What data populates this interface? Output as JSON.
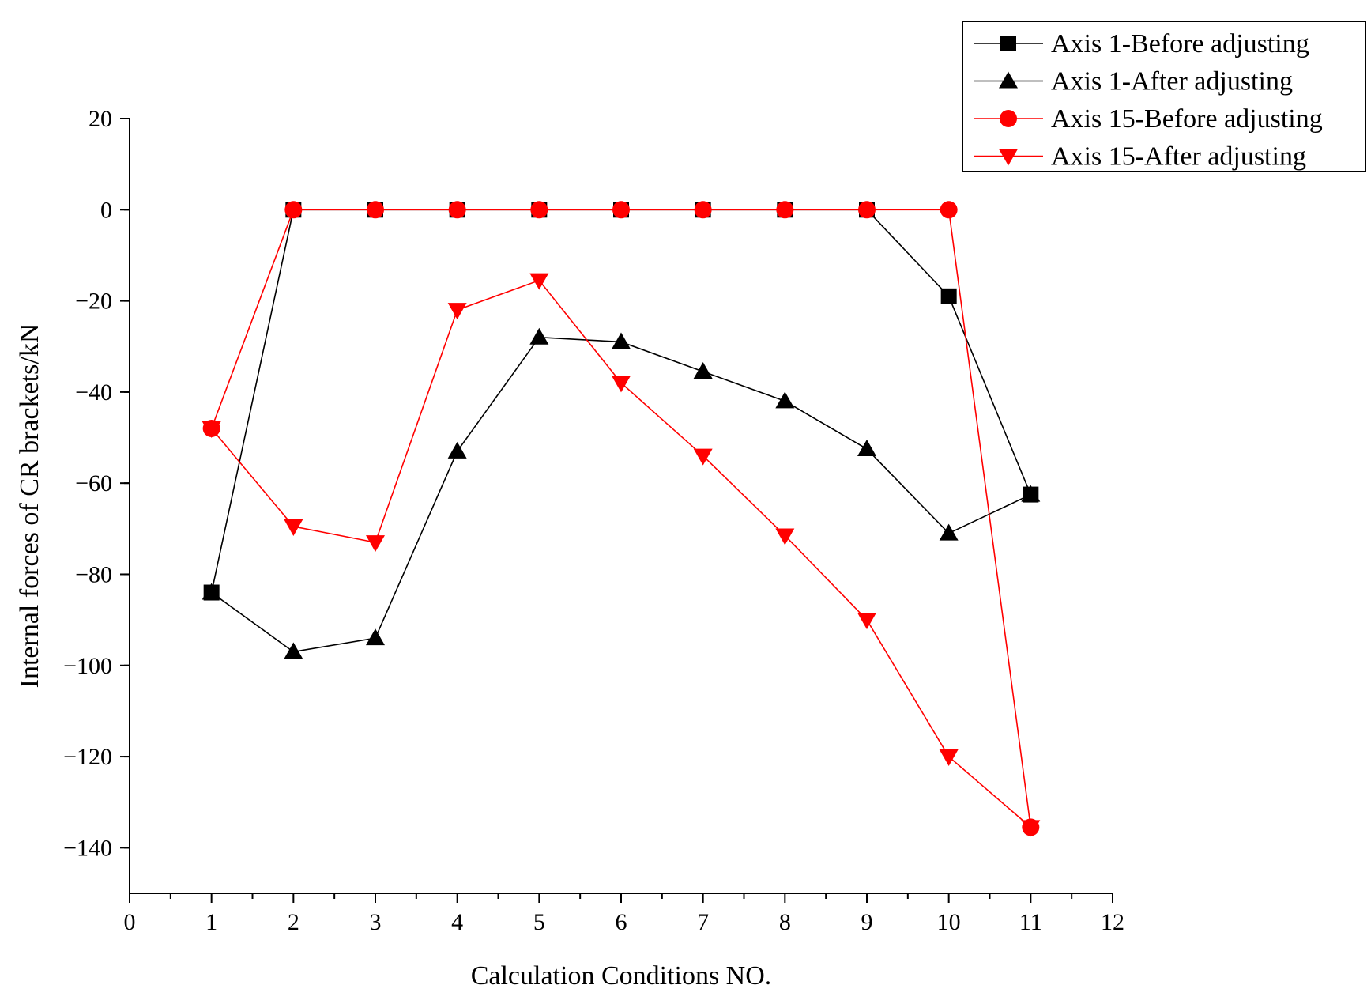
{
  "chart_data": {
    "type": "line",
    "title": "",
    "xlabel": "Calculation Conditions NO.",
    "ylabel": "Internal forces of CR brackets/kN",
    "xlim": [
      0,
      12
    ],
    "ylim": [
      -150,
      20
    ],
    "x_ticks": [
      0,
      1,
      2,
      3,
      4,
      5,
      6,
      7,
      8,
      9,
      10,
      11,
      12
    ],
    "x_tick_labels": [
      "0",
      "1",
      "2",
      "3",
      "4",
      "5",
      "6",
      "7",
      "8",
      "9",
      "10",
      "11",
      "12"
    ],
    "y_ticks": [
      20,
      0,
      -20,
      -40,
      -60,
      -80,
      -100,
      -120,
      -140
    ],
    "y_tick_labels": [
      "20",
      "0",
      "−20",
      "−40",
      "−60",
      "−80",
      "−100",
      "−120",
      "−140"
    ],
    "grid": false,
    "legend_position": "top-right",
    "series": [
      {
        "name": "Axis 1-Before adjusting",
        "color": "#000000",
        "marker": "square",
        "x": [
          1,
          2,
          3,
          4,
          5,
          6,
          7,
          8,
          9,
          10,
          11
        ],
        "values": [
          -84,
          0,
          0,
          0,
          0,
          0,
          0,
          0,
          0,
          -19,
          -62.5
        ]
      },
      {
        "name": "Axis 1-After adjusting",
        "color": "#000000",
        "marker": "triangle-up",
        "x": [
          1,
          2,
          3,
          4,
          5,
          6,
          7,
          8,
          9,
          10,
          11
        ],
        "values": [
          -84,
          -97,
          -94,
          -53,
          -28,
          -29,
          -35.5,
          -42,
          -52.5,
          -71,
          -62.5
        ]
      },
      {
        "name": "Axis 15-Before adjusting",
        "color": "#ff0000",
        "marker": "circle",
        "x": [
          1,
          2,
          3,
          4,
          5,
          6,
          7,
          8,
          9,
          10,
          11
        ],
        "values": [
          -48,
          0,
          0,
          0,
          0,
          0,
          0,
          0,
          0,
          0,
          -135.5
        ]
      },
      {
        "name": "Axis 15-After adjusting",
        "color": "#ff0000",
        "marker": "triangle-down",
        "x": [
          1,
          2,
          3,
          4,
          5,
          6,
          7,
          8,
          9,
          10,
          11
        ],
        "values": [
          -48,
          -69.5,
          -73,
          -22,
          -15.5,
          -38,
          -54,
          -71.5,
          -90,
          -120,
          -135.5
        ]
      }
    ]
  }
}
